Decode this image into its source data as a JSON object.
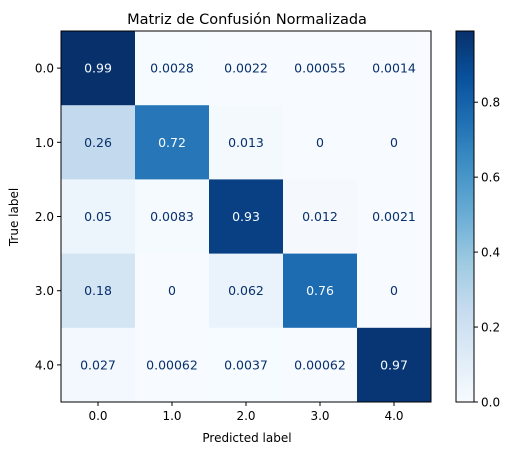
{
  "chart_data": {
    "type": "heatmap",
    "title": "Matriz de Confusión Normalizada",
    "xlabel": "Predicted label",
    "ylabel": "True label",
    "x_categories": [
      "0.0",
      "1.0",
      "2.0",
      "3.0",
      "4.0"
    ],
    "y_categories": [
      "0.0",
      "1.0",
      "2.0",
      "3.0",
      "4.0"
    ],
    "values": [
      [
        0.99,
        0.0028,
        0.0022,
        0.00055,
        0.0014
      ],
      [
        0.26,
        0.72,
        0.013,
        0,
        0
      ],
      [
        0.05,
        0.0083,
        0.93,
        0.012,
        0.0021
      ],
      [
        0.18,
        0,
        0.062,
        0.76,
        0
      ],
      [
        0.027,
        0.00062,
        0.0037,
        0.00062,
        0.97
      ]
    ],
    "value_labels": [
      [
        "0.99",
        "0.0028",
        "0.0022",
        "0.00055",
        "0.0014"
      ],
      [
        "0.26",
        "0.72",
        "0.013",
        "0",
        "0"
      ],
      [
        "0.05",
        "0.0083",
        "0.93",
        "0.012",
        "0.0021"
      ],
      [
        "0.18",
        "0",
        "0.062",
        "0.76",
        "0"
      ],
      [
        "0.027",
        "0.00062",
        "0.0037",
        "0.00062",
        "0.97"
      ]
    ],
    "colormap": "Blues",
    "colorbar": {
      "range": [
        0,
        0.99
      ],
      "ticks": [
        "0.0",
        "0.2",
        "0.4",
        "0.6",
        "0.8"
      ]
    },
    "grid": false
  }
}
